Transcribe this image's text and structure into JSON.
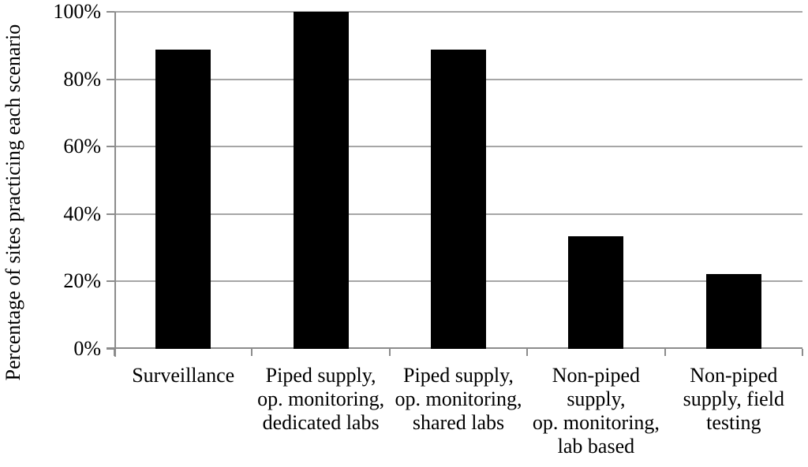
{
  "chart_data": {
    "type": "bar",
    "title": "",
    "xlabel": "",
    "ylabel": "Percentage of sites practicing each scenario",
    "categories": [
      "Surveillance",
      "Piped supply, op. monitoring, dedicated labs",
      "Piped supply, op. monitoring, shared labs",
      "Non-piped supply, op. monitoring, lab based",
      "Non-piped supply, field testing"
    ],
    "category_lines": [
      [
        "Surveillance"
      ],
      [
        "Piped supply,",
        "op. monitoring,",
        "dedicated labs"
      ],
      [
        "Piped supply,",
        "op. monitoring,",
        "shared labs"
      ],
      [
        "Non-piped",
        "supply,",
        "op. monitoring,",
        "lab based"
      ],
      [
        "Non-piped",
        "supply, field",
        "testing"
      ]
    ],
    "values": [
      88.9,
      100,
      88.9,
      33.3,
      22.2
    ],
    "ylim": [
      0,
      100
    ],
    "yticks": [
      0,
      20,
      40,
      60,
      80,
      100
    ],
    "ytick_labels": [
      "0%",
      "20%",
      "40%",
      "60%",
      "80%",
      "100%"
    ],
    "grid": true,
    "legend": "none",
    "bar_color": "#000000",
    "gridline_color": "#a6a6a6",
    "axis_color": "#8c8c8c"
  }
}
